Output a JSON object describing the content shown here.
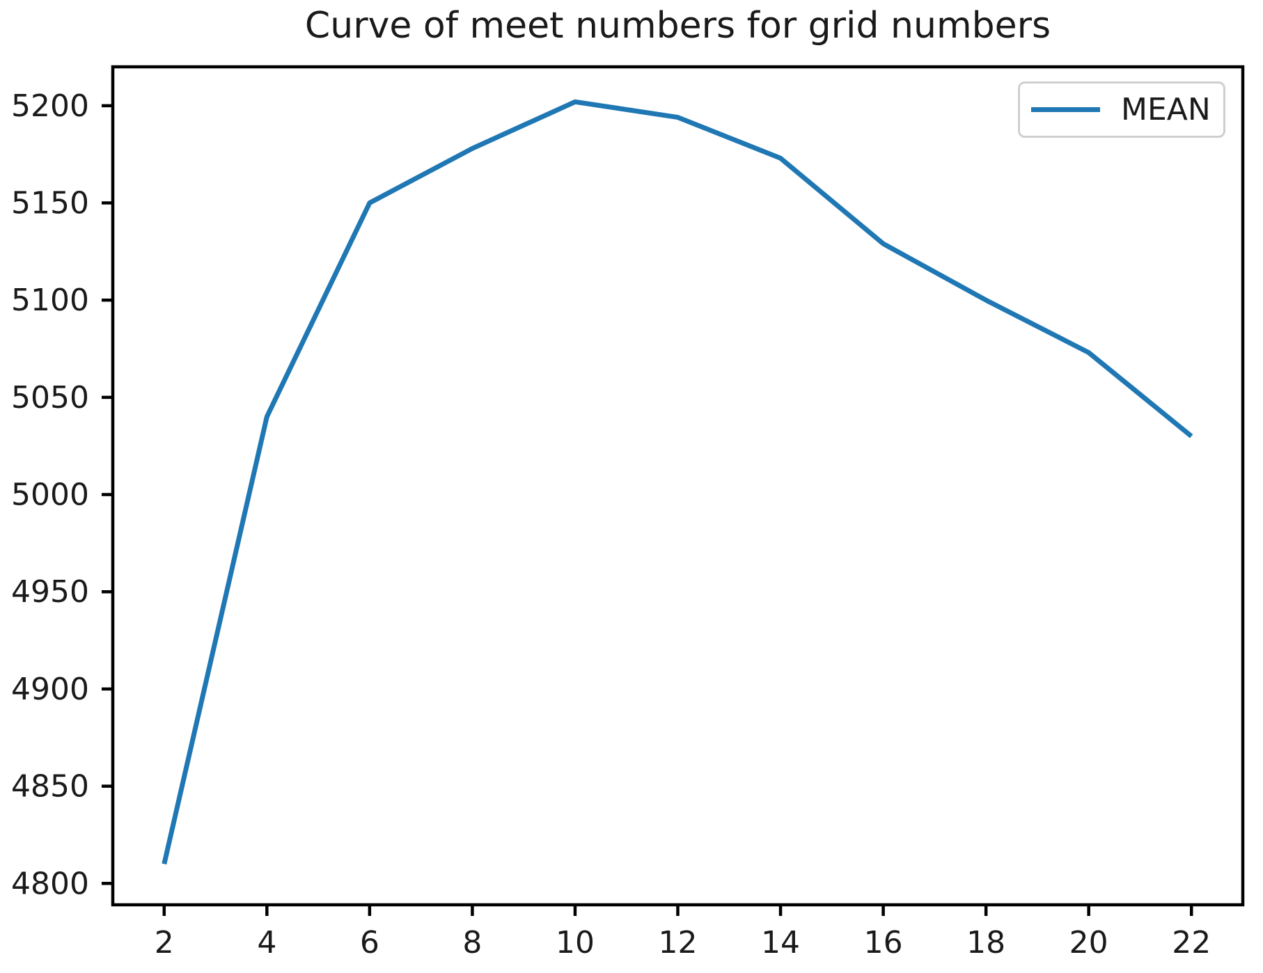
{
  "figure": {
    "background": "#ffffff",
    "axis_color": "#000000",
    "text_color": "#1a1a1a"
  },
  "chart_data": {
    "type": "line",
    "title": "Curve of meet numbers for grid numbers",
    "x": [
      2,
      4,
      6,
      8,
      10,
      12,
      14,
      16,
      18,
      20,
      22
    ],
    "series": [
      {
        "name": "MEAN",
        "color": "#1f77b4",
        "values": [
          4810,
          5040,
          5150,
          5178,
          5202,
          5194,
          5173,
          5129,
          5100,
          5073,
          5030
        ]
      }
    ],
    "xlabel": "",
    "ylabel": "",
    "xlim": [
      1,
      23
    ],
    "ylim": [
      4789,
      5220
    ],
    "x_ticks": [
      2,
      4,
      6,
      8,
      10,
      12,
      14,
      16,
      18,
      20,
      22
    ],
    "y_ticks": [
      4800,
      4850,
      4900,
      4950,
      5000,
      5050,
      5100,
      5150,
      5200
    ],
    "grid": false,
    "legend": {
      "position": "upper right",
      "entries": [
        "MEAN"
      ]
    }
  }
}
